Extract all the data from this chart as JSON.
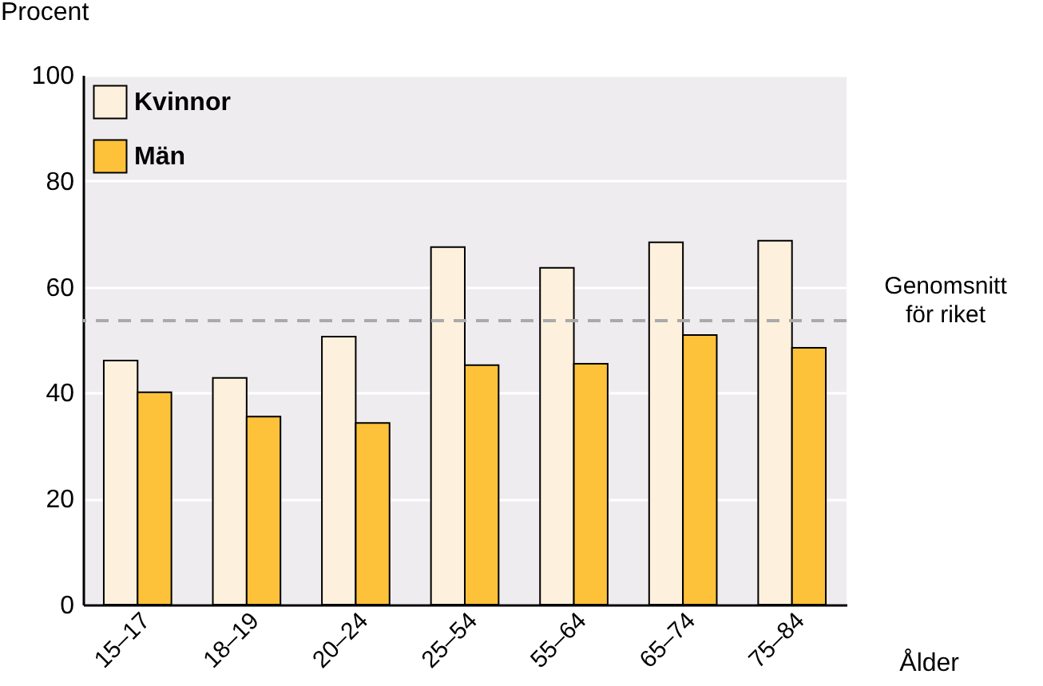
{
  "chart_data": {
    "type": "bar",
    "ylabel": "Procent",
    "xlabel": "Ålder",
    "categories": [
      "15–17",
      "18–19",
      "20–24",
      "25–54",
      "55–64",
      "65–74",
      "75–84"
    ],
    "series": [
      {
        "name": "Kvinnor",
        "color": "#fdf0dc",
        "values": [
          46.1,
          42.8,
          50.6,
          67.5,
          63.6,
          68.4,
          68.7
        ]
      },
      {
        "name": "Män",
        "color": "#fdc23a",
        "values": [
          40.1,
          35.5,
          34.3,
          45.2,
          45.5,
          50.9,
          48.5
        ]
      }
    ],
    "ylim": [
      0,
      100
    ],
    "yticks": [
      0,
      20,
      40,
      60,
      80,
      100
    ],
    "grid": "y",
    "legend": "top left",
    "ref_lines": [
      {
        "axis": "y",
        "value": 53.6,
        "label": "Genomsnitt för riket",
        "color": "#aaaaaa",
        "line_style": "dashed"
      }
    ]
  }
}
